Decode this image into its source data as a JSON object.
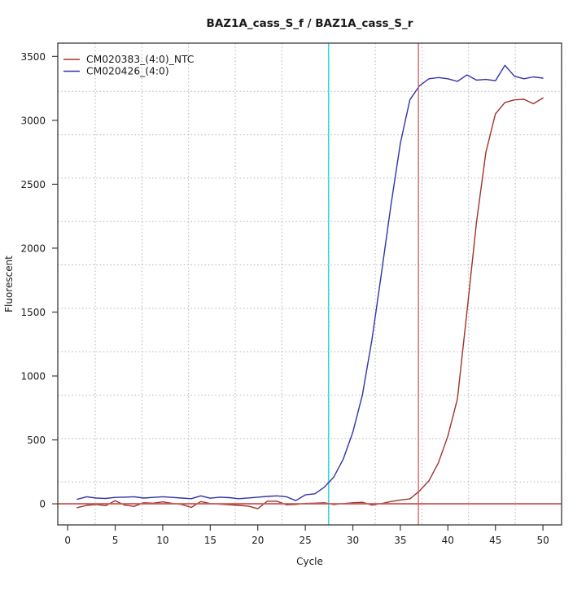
{
  "chart_data": {
    "type": "line",
    "title": "BAZ1A_cass_S_f / BAZ1A_cass_S_r",
    "xlabel": "Cycle",
    "ylabel": "Fluorescent",
    "xlim": [
      -1.04,
      51.96
    ],
    "ylim": [
      -165,
      3604
    ],
    "xticks": [
      0,
      5,
      10,
      15,
      20,
      25,
      30,
      35,
      40,
      45,
      50
    ],
    "yticks": [
      0,
      500,
      1000,
      1500,
      2000,
      2500,
      3000,
      3500
    ],
    "grid": true,
    "grid_style": "dotted",
    "grid_x": [
      2.9,
      7.81,
      12.72,
      17.63,
      22.54,
      27.45,
      32.36,
      37.27,
      42.18,
      47.09,
      51.95
    ],
    "grid_y": [
      171,
      511,
      850,
      1190,
      1529,
      1869,
      2208,
      2548,
      2887,
      3227
    ],
    "legend_position": "top-left",
    "x": [
      1,
      2,
      3,
      4,
      5,
      6,
      7,
      8,
      9,
      10,
      11,
      12,
      13,
      14,
      15,
      16,
      17,
      18,
      19,
      20,
      21,
      22,
      23,
      24,
      25,
      26,
      27,
      28,
      29,
      30,
      31,
      32,
      33,
      34,
      35,
      36,
      37,
      38,
      39,
      40,
      41,
      42,
      43,
      44,
      45,
      46,
      47,
      48,
      49,
      50
    ],
    "series": [
      {
        "name": "CM020383_(4:0)_NTC",
        "color": "#9f332e",
        "values": [
          -30,
          -12,
          -5,
          -15,
          25,
          -10,
          -20,
          8,
          5,
          15,
          3,
          -5,
          -28,
          18,
          2,
          -3,
          -8,
          -12,
          -18,
          -38,
          20,
          20,
          -8,
          -5,
          3,
          5,
          8,
          -6,
          2,
          8,
          12,
          -10,
          2,
          18,
          30,
          38,
          100,
          180,
          320,
          530,
          820,
          1500,
          2200,
          2750,
          3050,
          3140,
          3160,
          3165,
          3130,
          3175
        ]
      },
      {
        "name": "CM020426_(4:0)",
        "color": "#3232aa",
        "values": [
          35,
          55,
          45,
          42,
          50,
          52,
          55,
          45,
          50,
          55,
          50,
          45,
          40,
          62,
          44,
          52,
          48,
          40,
          46,
          52,
          58,
          62,
          55,
          25,
          70,
          78,
          130,
          210,
          350,
          560,
          850,
          1280,
          1800,
          2330,
          2820,
          3160,
          3270,
          3325,
          3335,
          3325,
          3305,
          3355,
          3315,
          3320,
          3310,
          3430,
          3345,
          3325,
          3340,
          3330
        ]
      }
    ],
    "threshold_line": {
      "y": 0,
      "color": "#cd5c5c"
    },
    "vlines": [
      {
        "x": 27.45,
        "color": "#00e4ee",
        "meaning": "ct-marker-cyan"
      },
      {
        "x": 36.9,
        "color": "#cd5c5c",
        "meaning": "ct-marker-red"
      }
    ],
    "colors": {
      "grid": "#b3b3b3",
      "axis": "#3a3a3a",
      "background": "#ffffff"
    }
  }
}
